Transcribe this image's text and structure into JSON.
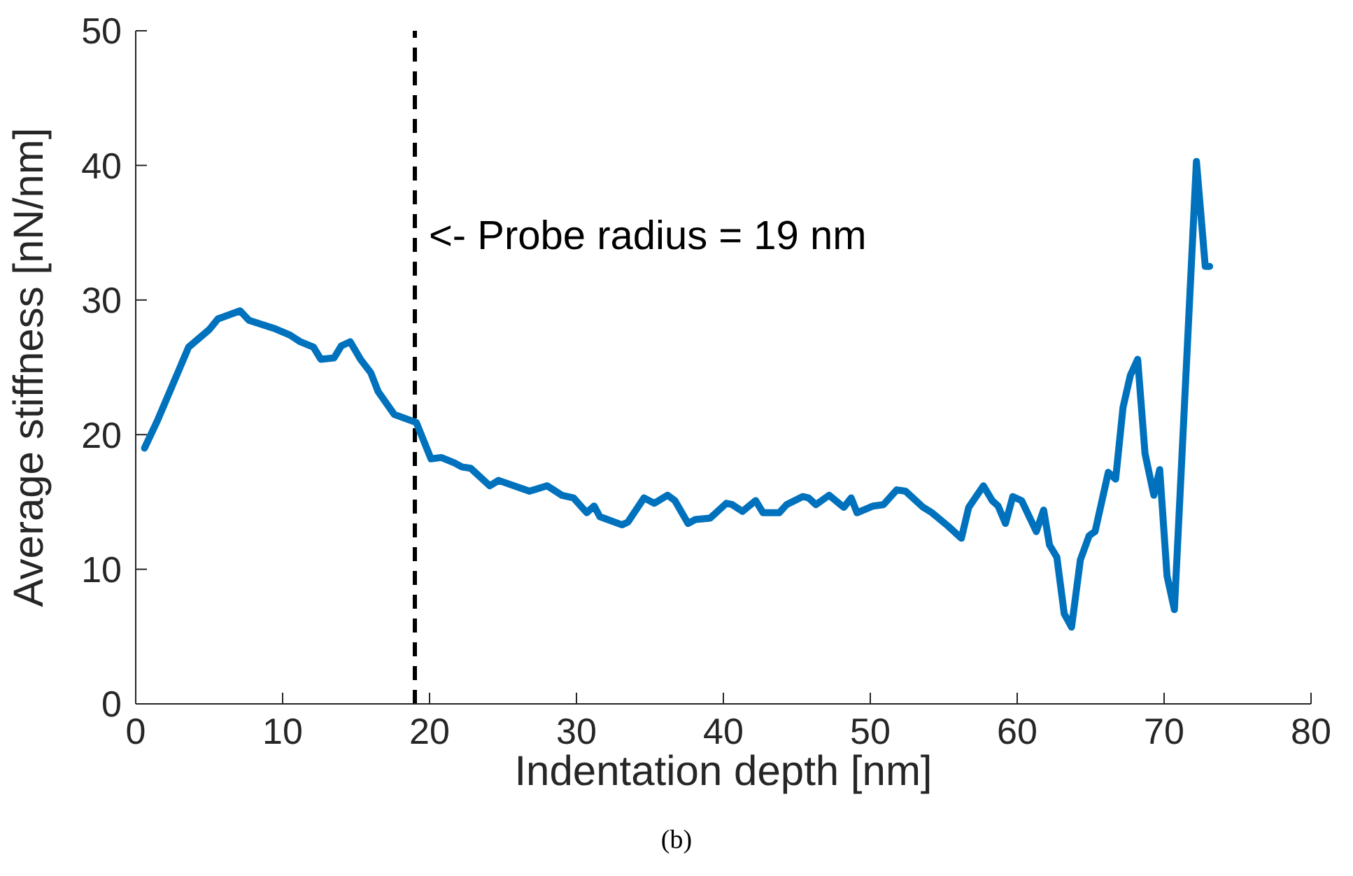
{
  "chart_data": {
    "type": "line",
    "xlabel": "Indentation depth [nm]",
    "ylabel": "Average stiffness [nN/nm]",
    "annotations": [
      "(b)"
    ],
    "xlim": [
      0,
      80
    ],
    "xticks": [
      0,
      10,
      20,
      30,
      40,
      50,
      60,
      70,
      80
    ],
    "ylim": [
      0,
      50
    ],
    "yticks": [
      0,
      10,
      20,
      30,
      40,
      50
    ],
    "grid": false,
    "line_style": "solid",
    "marker": "none",
    "ref_lines": [
      {
        "axis": "x",
        "value": 19,
        "label": "<- Probe radius = 19 nm",
        "color": "#000000",
        "line_style": "dashed"
      }
    ],
    "series": [
      {
        "color": "#0072bd",
        "x": [
          0.6,
          1.5,
          3.6,
          5.0,
          5.6,
          7.1,
          7.7,
          9.4,
          10.5,
          11.2,
          12.1,
          12.6,
          13.5,
          14.0,
          14.6,
          15.3,
          16.0,
          16.5,
          17.6,
          19.1,
          20.1,
          20.8,
          21.7,
          22.2,
          22.8,
          24.1,
          24.7,
          26.8,
          28.0,
          29.0,
          29.8,
          30.7,
          31.2,
          31.6,
          33.1,
          33.5,
          34.6,
          35.3,
          36.2,
          36.7,
          37.6,
          38.1,
          39.1,
          40.2,
          40.6,
          41.3,
          42.2,
          42.7,
          43.8,
          44.3,
          45.4,
          45.8,
          46.3,
          47.2,
          48.2,
          48.7,
          49.1,
          50.2,
          50.9,
          51.8,
          52.4,
          53.6,
          54.2,
          55.3,
          56.2,
          56.7,
          57.7,
          58.3,
          58.7,
          59.2,
          59.7,
          60.3,
          61.3,
          61.8,
          62.2,
          62.7,
          63.2,
          63.7,
          64.3,
          64.9,
          65.3,
          66.2,
          66.7,
          67.2,
          67.7,
          68.2,
          68.7,
          69.3,
          69.7,
          70.2,
          70.7,
          72.2,
          72.8,
          73.1
        ],
        "values": [
          19.0,
          21.1,
          26.5,
          27.8,
          28.6,
          29.2,
          28.5,
          27.9,
          27.4,
          26.9,
          26.5,
          25.6,
          25.7,
          26.6,
          26.9,
          25.6,
          24.6,
          23.2,
          21.5,
          20.9,
          18.2,
          18.3,
          17.9,
          17.6,
          17.5,
          16.2,
          16.6,
          15.8,
          16.2,
          15.5,
          15.3,
          14.2,
          14.7,
          13.9,
          13.3,
          13.5,
          15.3,
          14.9,
          15.5,
          15.1,
          13.4,
          13.7,
          13.8,
          14.9,
          14.8,
          14.3,
          15.1,
          14.2,
          14.2,
          14.8,
          15.4,
          15.3,
          14.8,
          15.5,
          14.6,
          15.3,
          14.2,
          14.7,
          14.8,
          15.9,
          15.8,
          14.6,
          14.2,
          13.2,
          12.3,
          14.6,
          16.2,
          15.1,
          14.7,
          13.4,
          15.4,
          15.1,
          12.8,
          14.4,
          11.8,
          10.9,
          6.7,
          5.7,
          10.7,
          12.5,
          12.8,
          17.2,
          16.7,
          22.0,
          24.4,
          25.6,
          18.6,
          15.5,
          17.4,
          9.5,
          7.0,
          40.3,
          32.5,
          32.5
        ]
      }
    ]
  }
}
